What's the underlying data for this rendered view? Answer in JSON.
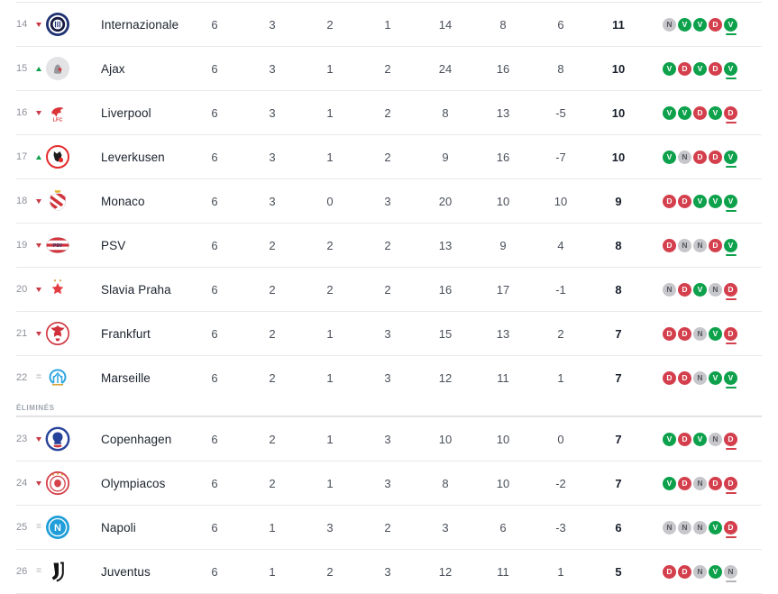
{
  "table": {
    "eliminated_label": "ÉLIMINÉS",
    "form_legend": {
      "V": "win",
      "D": "loss",
      "N": "draw"
    },
    "colors": {
      "win": "#0da14c",
      "loss": "#d33f4c",
      "draw_bg": "#c7c7cb",
      "draw_underline": "#b4b4b8",
      "trend_up": "#0da14c",
      "trend_down": "#c93a47",
      "trend_same": "#b9bcc2"
    },
    "sections": [
      {
        "label": null,
        "rows": [
          {
            "pos": "14",
            "trend": "down",
            "team": "Internazionale",
            "crest": "inter",
            "stats": [
              "6",
              "3",
              "2",
              "1",
              "14",
              "8",
              "6"
            ],
            "points": "11",
            "form": [
              "N",
              "V",
              "V",
              "D",
              "V"
            ]
          },
          {
            "pos": "15",
            "trend": "up",
            "team": "Ajax",
            "crest": "ajax",
            "stats": [
              "6",
              "3",
              "1",
              "2",
              "24",
              "16",
              "8"
            ],
            "points": "10",
            "form": [
              "V",
              "D",
              "V",
              "D",
              "V"
            ]
          },
          {
            "pos": "16",
            "trend": "down",
            "team": "Liverpool",
            "crest": "liverpool",
            "stats": [
              "6",
              "3",
              "1",
              "2",
              "8",
              "13",
              "-5"
            ],
            "points": "10",
            "form": [
              "V",
              "V",
              "D",
              "V",
              "D"
            ]
          },
          {
            "pos": "17",
            "trend": "up",
            "team": "Leverkusen",
            "crest": "leverkusen",
            "stats": [
              "6",
              "3",
              "1",
              "2",
              "9",
              "16",
              "-7"
            ],
            "points": "10",
            "form": [
              "V",
              "N",
              "D",
              "D",
              "V"
            ]
          },
          {
            "pos": "18",
            "trend": "down",
            "team": "Monaco",
            "crest": "monaco",
            "stats": [
              "6",
              "3",
              "0",
              "3",
              "20",
              "10",
              "10"
            ],
            "points": "9",
            "form": [
              "D",
              "D",
              "V",
              "V",
              "V"
            ]
          },
          {
            "pos": "19",
            "trend": "down",
            "team": "PSV",
            "crest": "psv",
            "stats": [
              "6",
              "2",
              "2",
              "2",
              "13",
              "9",
              "4"
            ],
            "points": "8",
            "form": [
              "D",
              "N",
              "N",
              "D",
              "V"
            ]
          },
          {
            "pos": "20",
            "trend": "down",
            "team": "Slavia Praha",
            "crest": "slavia",
            "stats": [
              "6",
              "2",
              "2",
              "2",
              "16",
              "17",
              "-1"
            ],
            "points": "8",
            "form": [
              "N",
              "D",
              "V",
              "N",
              "D"
            ]
          },
          {
            "pos": "21",
            "trend": "down",
            "team": "Frankfurt",
            "crest": "frankfurt",
            "stats": [
              "6",
              "2",
              "1",
              "3",
              "15",
              "13",
              "2"
            ],
            "points": "7",
            "form": [
              "D",
              "D",
              "N",
              "V",
              "D"
            ]
          },
          {
            "pos": "22",
            "trend": "same",
            "team": "Marseille",
            "crest": "marseille",
            "stats": [
              "6",
              "2",
              "1",
              "3",
              "12",
              "11",
              "1"
            ],
            "points": "7",
            "form": [
              "D",
              "D",
              "N",
              "V",
              "V"
            ]
          }
        ]
      },
      {
        "label": "ÉLIMINÉS",
        "rows": [
          {
            "pos": "23",
            "trend": "down",
            "team": "Copenhagen",
            "crest": "copenhagen",
            "stats": [
              "6",
              "2",
              "1",
              "3",
              "10",
              "10",
              "0"
            ],
            "points": "7",
            "form": [
              "V",
              "D",
              "V",
              "N",
              "D"
            ]
          },
          {
            "pos": "24",
            "trend": "down",
            "team": "Olympiacos",
            "crest": "olympiacos",
            "stats": [
              "6",
              "2",
              "1",
              "3",
              "8",
              "10",
              "-2"
            ],
            "points": "7",
            "form": [
              "V",
              "D",
              "N",
              "D",
              "D"
            ]
          },
          {
            "pos": "25",
            "trend": "same",
            "team": "Napoli",
            "crest": "napoli",
            "stats": [
              "6",
              "1",
              "3",
              "2",
              "3",
              "6",
              "-3"
            ],
            "points": "6",
            "form": [
              "N",
              "N",
              "N",
              "V",
              "D"
            ]
          },
          {
            "pos": "26",
            "trend": "same",
            "team": "Juventus",
            "crest": "juventus",
            "stats": [
              "6",
              "1",
              "2",
              "3",
              "12",
              "11",
              "1"
            ],
            "points": "5",
            "form": [
              "D",
              "D",
              "N",
              "V",
              "N"
            ]
          }
        ]
      }
    ]
  }
}
